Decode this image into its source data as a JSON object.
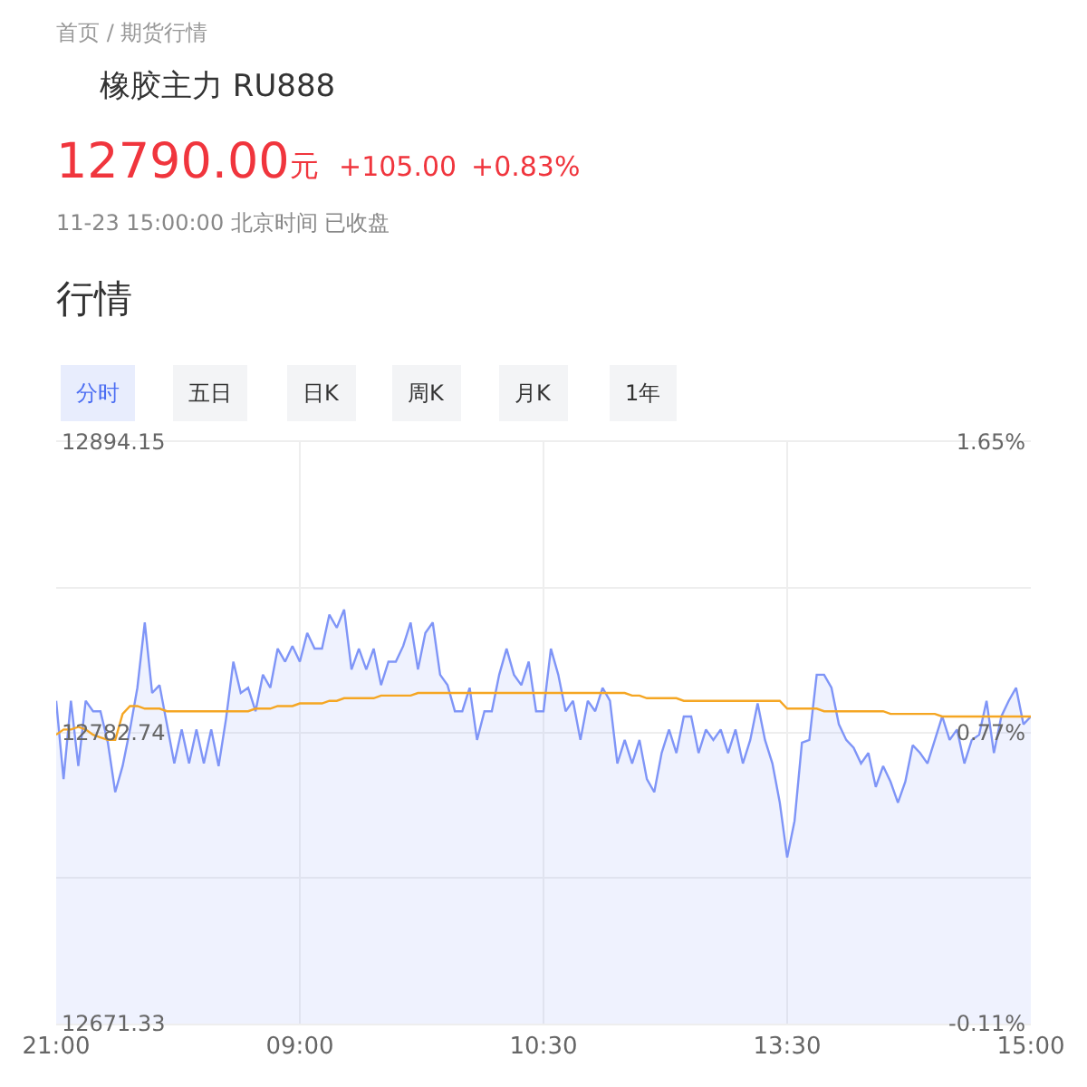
{
  "chart_data": {
    "type": "area",
    "title": "橡胶主力 RU888",
    "annotations": [
      "首页 / 期货行情",
      "12790.00",
      "元",
      "+105.00",
      "+0.83%",
      "11-23 15:00:00 北京时间 已收盘",
      "行情",
      "分时",
      "五日",
      "日K",
      "周K",
      "月K",
      "1年"
    ],
    "categories": [
      "21:00",
      null,
      null,
      null,
      null,
      null,
      null,
      null,
      null,
      null,
      null,
      null,
      null,
      null,
      null,
      null,
      null,
      null,
      null,
      null,
      null,
      null,
      null,
      null,
      null,
      null,
      null,
      null,
      null,
      null,
      null,
      null,
      null,
      "09:00",
      null,
      null,
      null,
      null,
      null,
      null,
      null,
      null,
      null,
      null,
      null,
      null,
      null,
      null,
      null,
      null,
      null,
      null,
      null,
      null,
      null,
      null,
      null,
      null,
      null,
      null,
      null,
      null,
      null,
      null,
      null,
      null,
      "10:30",
      null,
      null,
      null,
      null,
      null,
      null,
      null,
      null,
      null,
      null,
      null,
      null,
      null,
      null,
      null,
      null,
      null,
      null,
      null,
      null,
      null,
      null,
      null,
      null,
      null,
      null,
      null,
      null,
      null,
      null,
      null,
      null,
      "13:30",
      null,
      null,
      null,
      null,
      null,
      null,
      null,
      null,
      null,
      null,
      null,
      null,
      null,
      null,
      null,
      null,
      null,
      null,
      null,
      null,
      null,
      null,
      null,
      null,
      null,
      null,
      null,
      null,
      null,
      null,
      null,
      null,
      "15:00"
    ],
    "series": [
      {
        "color": "#7f95f7",
        "values": [
          12795,
          12765,
          12795,
          12770,
          12795,
          12791,
          12791,
          12779,
          12760,
          12770,
          12784,
          12800,
          12825,
          12798,
          12801,
          12786,
          12771,
          12784,
          12771,
          12784,
          12771,
          12784,
          12770,
          12788,
          12810,
          12798,
          12800,
          12791,
          12805,
          12800,
          12815,
          12810,
          12816,
          12810,
          12821,
          12815,
          12815,
          12828,
          12823,
          12830,
          12807,
          12815,
          12807,
          12815,
          12801,
          12810,
          12810,
          12816,
          12825,
          12807,
          12821,
          12825,
          12805,
          12801,
          12791,
          12791,
          12800,
          12780,
          12791,
          12791,
          12805,
          12815,
          12805,
          12801,
          12810,
          12791,
          12791,
          12815,
          12805,
          12791,
          12795,
          12780,
          12795,
          12791,
          12800,
          12795,
          12771,
          12780,
          12771,
          12780,
          12765,
          12760,
          12775,
          12784,
          12775,
          12789,
          12789,
          12775,
          12784,
          12780,
          12784,
          12775,
          12784,
          12771,
          12780,
          12794,
          12780,
          12771,
          12756,
          12735,
          12749,
          12779,
          12780,
          12805,
          12805,
          12800,
          12786,
          12780,
          12777,
          12771,
          12775,
          12762,
          12770,
          12764,
          12756,
          12764,
          12778,
          12775,
          12771,
          12780,
          12789,
          12780,
          12784,
          12771,
          12780,
          12782,
          12795,
          12775,
          12789,
          12795,
          12800,
          12786,
          12789
        ]
      },
      {
        "type": "line",
        "color": "#f5a623",
        "values": [
          12782,
          12784,
          12784,
          12785,
          12784,
          12782,
          12781,
          12780,
          12780,
          12790,
          12793,
          12793,
          12792,
          12792,
          12792,
          12791,
          12791,
          12791,
          12791,
          12791,
          12791,
          12791,
          12791,
          12791,
          12791,
          12791,
          12791,
          12792,
          12792,
          12792,
          12793,
          12793,
          12793,
          12794,
          12794,
          12794,
          12794,
          12795,
          12795,
          12796,
          12796,
          12796,
          12796,
          12796,
          12797,
          12797,
          12797,
          12797,
          12797,
          12798,
          12798,
          12798,
          12798,
          12798,
          12798,
          12798,
          12798,
          12798,
          12798,
          12798,
          12798,
          12798,
          12798,
          12798,
          12798,
          12798,
          12798,
          12798,
          12798,
          12798,
          12798,
          12798,
          12798,
          12798,
          12798,
          12798,
          12798,
          12798,
          12797,
          12797,
          12796,
          12796,
          12796,
          12796,
          12796,
          12795,
          12795,
          12795,
          12795,
          12795,
          12795,
          12795,
          12795,
          12795,
          12795,
          12795,
          12795,
          12795,
          12795,
          12792,
          12792,
          12792,
          12792,
          12792,
          12791,
          12791,
          12791,
          12791,
          12791,
          12791,
          12791,
          12791,
          12791,
          12790,
          12790,
          12790,
          12790,
          12790,
          12790,
          12790,
          12789,
          12789,
          12789,
          12789,
          12789,
          12789,
          12789,
          12789,
          12789,
          12789,
          12789,
          12789,
          12789
        ]
      }
    ],
    "ylim": [
      12671.33,
      12894.15
    ],
    "yticks": [
      12671.33,
      {
        "value": 12727.04,
        "label": null
      },
      12782.74,
      {
        "value": 12838.44,
        "label": null
      },
      12894.15
    ],
    "y2lim": [
      -0.11,
      1.65
    ],
    "y2ticks": [
      {
        "value": -0.11,
        "label": "-0.11%"
      },
      {
        "value": 0.77,
        "label": "0.77%"
      },
      {
        "value": 1.65,
        "label": "1.65%"
      }
    ],
    "grid": true
  }
}
